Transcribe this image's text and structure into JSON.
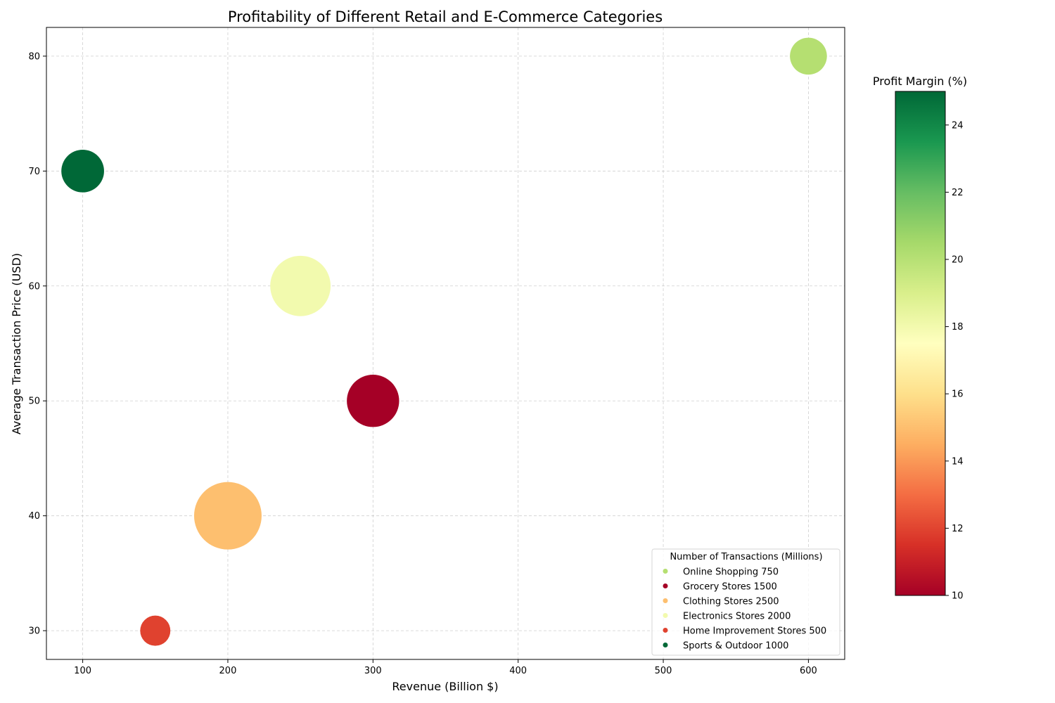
{
  "chart_data": {
    "type": "scatter",
    "title": "Profitability of Different Retail and E-Commerce Categories",
    "xlabel": "Revenue (Billion $)",
    "ylabel": "Average Transaction Price (USD)",
    "xlim": [
      75,
      625
    ],
    "ylim": [
      27.5,
      82.5
    ],
    "xticks": [
      "100",
      "200",
      "300",
      "400",
      "500",
      "600"
    ],
    "yticks": [
      "30",
      "40",
      "50",
      "60",
      "70",
      "80"
    ],
    "grid": true,
    "legend_title": "Number of Transactions (Millions)",
    "legend_position": "lower right",
    "colorbar": {
      "label": "Profit Margin (%)",
      "range": [
        10,
        25
      ],
      "colormap": "RdYlGn",
      "ticks": [
        "10",
        "12",
        "14",
        "16",
        "18",
        "20",
        "22",
        "24"
      ]
    },
    "points": [
      {
        "category": "Online Shopping",
        "revenue": 600,
        "avg_price": 80,
        "transactions": 750,
        "profit_margin": 20,
        "legend": "Online Shopping 750",
        "color": "#b5df71"
      },
      {
        "category": "Grocery Stores",
        "revenue": 300,
        "avg_price": 50,
        "transactions": 1500,
        "profit_margin": 10,
        "legend": "Grocery Stores 1500",
        "color": "#a50026"
      },
      {
        "category": "Clothing Stores",
        "revenue": 200,
        "avg_price": 40,
        "transactions": 2500,
        "profit_margin": 15,
        "legend": "Clothing Stores 2500",
        "color": "#fdbf6f"
      },
      {
        "category": "Electronics Stores",
        "revenue": 250,
        "avg_price": 60,
        "transactions": 2000,
        "profit_margin": 18,
        "legend": "Electronics Stores 2000",
        "color": "#f2faae"
      },
      {
        "category": "Home Improvement Stores",
        "revenue": 150,
        "avg_price": 30,
        "transactions": 500,
        "profit_margin": 12,
        "legend": "Home Improvement Stores 500",
        "color": "#e0422f"
      },
      {
        "category": "Sports & Outdoor",
        "revenue": 100,
        "avg_price": 70,
        "transactions": 1000,
        "profit_margin": 25,
        "legend": "Sports & Outdoor 1000",
        "color": "#006837"
      }
    ]
  }
}
